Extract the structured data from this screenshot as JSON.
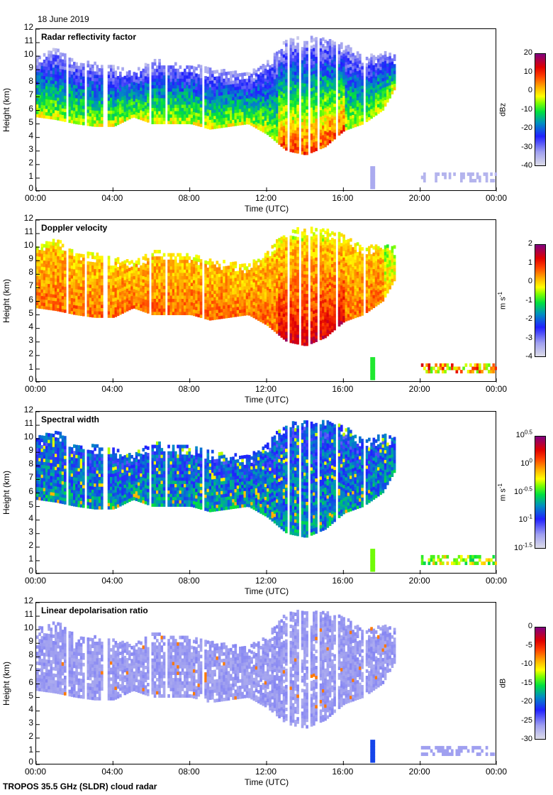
{
  "date": "18 June 2019",
  "footer": "TROPOS 35.5 GHz (SLDR) cloud radar",
  "chart_data": [
    {
      "type": "heatmap",
      "title": "Radar reflectivity factor",
      "xlabel": "Time (UTC)",
      "ylabel": "Height (km)",
      "xlim": [
        "00:00",
        "00:00"
      ],
      "xticks": [
        "00:00",
        "04:00",
        "08:00",
        "12:00",
        "16:00",
        "20:00",
        "00:00"
      ],
      "ylim": [
        0,
        12
      ],
      "yticks": [
        "0",
        "1",
        "2",
        "3",
        "4",
        "5",
        "6",
        "7",
        "8",
        "9",
        "10",
        "11",
        "12"
      ],
      "colorbar": {
        "label": "dBz",
        "range": [
          -40,
          20
        ],
        "ticks": [
          "20",
          "10",
          "0",
          "-10",
          "-20",
          "-30",
          "-40"
        ]
      },
      "value_range_in_cloud": [
        -38,
        5
      ]
    },
    {
      "type": "heatmap",
      "title": "Doppler velocity",
      "xlabel": "Time (UTC)",
      "ylabel": "Height (km)",
      "xticks": [
        "00:00",
        "04:00",
        "08:00",
        "12:00",
        "16:00",
        "20:00",
        "00:00"
      ],
      "ylim": [
        0,
        12
      ],
      "yticks": [
        "0",
        "1",
        "2",
        "3",
        "4",
        "5",
        "6",
        "7",
        "8",
        "9",
        "10",
        "11",
        "12"
      ],
      "colorbar": {
        "label": "m s",
        "label_exp": "-1",
        "range": [
          -4,
          2
        ],
        "ticks": [
          "2",
          "1",
          "0",
          "-1",
          "-2",
          "-3",
          "-4"
        ]
      },
      "value_range_in_cloud": [
        -1.5,
        1.8
      ]
    },
    {
      "type": "heatmap",
      "title": "Spectral width",
      "xlabel": "Time (UTC)",
      "ylabel": "Height (km)",
      "xticks": [
        "00:00",
        "04:00",
        "08:00",
        "12:00",
        "16:00",
        "20:00",
        "00:00"
      ],
      "ylim": [
        0,
        12
      ],
      "yticks": [
        "0",
        "1",
        "2",
        "3",
        "4",
        "5",
        "6",
        "7",
        "8",
        "9",
        "10",
        "11",
        "12"
      ],
      "colorbar": {
        "label": "m s",
        "label_exp": "-1",
        "scale": "log",
        "range_log10": [
          -1.5,
          0.5
        ],
        "ticks": [
          {
            "base": "10",
            "exp": "0.5"
          },
          {
            "base": "10",
            "exp": "0"
          },
          {
            "base": "10",
            "exp": "-0.5"
          },
          {
            "base": "10",
            "exp": "-1"
          },
          {
            "base": "10",
            "exp": "-1.5"
          }
        ]
      },
      "value_range_in_cloud_log10": [
        -1.3,
        -0.3
      ]
    },
    {
      "type": "heatmap",
      "title": "Linear depolarisation ratio",
      "xlabel": "Time (UTC)",
      "ylabel": "Height (km)",
      "xticks": [
        "00:00",
        "04:00",
        "08:00",
        "12:00",
        "16:00",
        "20:00",
        "00:00"
      ],
      "ylim": [
        0,
        12
      ],
      "yticks": [
        "0",
        "1",
        "2",
        "3",
        "4",
        "5",
        "6",
        "7",
        "8",
        "9",
        "10",
        "11",
        "12"
      ],
      "colorbar": {
        "label": "dB",
        "range": [
          -30,
          0
        ],
        "ticks": [
          "0",
          "-5",
          "-10",
          "-15",
          "-20",
          "-25",
          "-30"
        ]
      },
      "value_range_in_cloud": [
        -30,
        -20
      ]
    }
  ],
  "cloud_envelope": {
    "time_h": [
      0,
      1,
      2,
      3,
      4,
      5,
      6,
      7,
      8,
      9,
      10,
      11,
      12,
      13,
      14,
      15,
      16,
      17,
      18,
      18.6
    ],
    "base_km": [
      5.5,
      5.3,
      5.0,
      4.8,
      4.8,
      5.5,
      5.0,
      5.0,
      5.0,
      4.6,
      4.8,
      5.0,
      4.2,
      3.0,
      2.7,
      3.3,
      4.5,
      5.0,
      6.0,
      7.5
    ],
    "top_km": [
      10.0,
      10.5,
      9.5,
      9.4,
      9.2,
      8.8,
      9.6,
      9.5,
      9.3,
      9.0,
      8.8,
      8.6,
      9.6,
      11.2,
      11.3,
      11.2,
      10.8,
      9.8,
      10.2,
      10.0
    ],
    "data_gaps_h": [
      1.55,
      2.55,
      3.55,
      5.9,
      6.7,
      8.6,
      13.1,
      13.7,
      14.2,
      14.65,
      15.6,
      17.0
    ]
  },
  "low_cloud": [
    {
      "start_h": 17.3,
      "end_h": 17.6,
      "base_km": 0.2,
      "top_km": 1.8
    },
    {
      "start_h": 20.0,
      "end_h": 24.0,
      "base_km": 0.7,
      "top_km": 1.3
    }
  ]
}
